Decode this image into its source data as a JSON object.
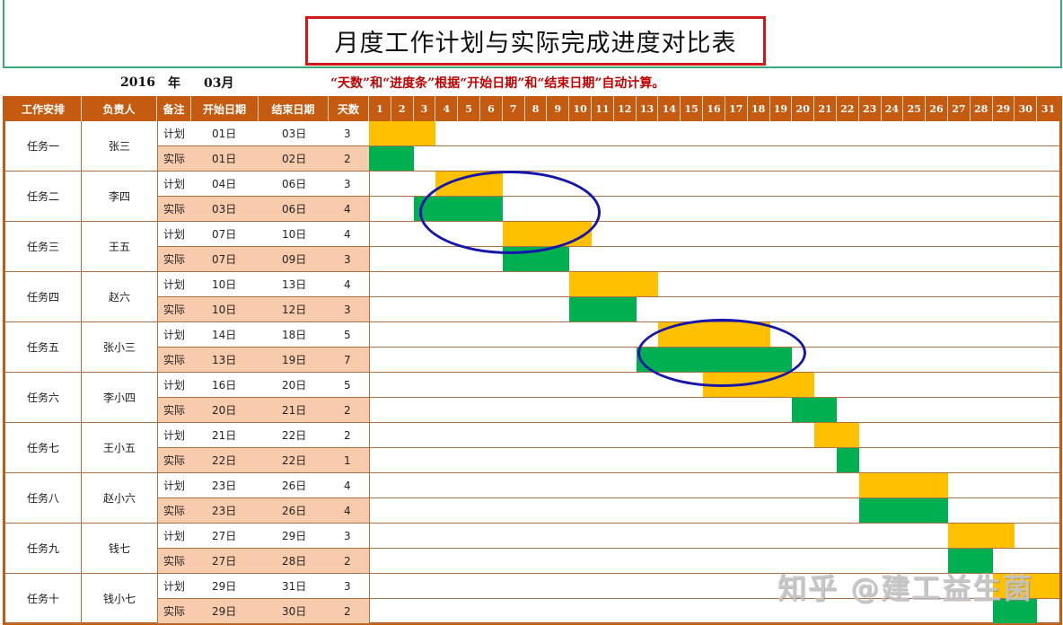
{
  "title": "月度工作计划与实际完成进度对比表",
  "period": {
    "year": "2016",
    "year_unit": "年",
    "month": "03月"
  },
  "note": "“天数”和“进度条”根据“开始日期”和“结束日期”自动计算。",
  "headers": [
    "工作安排",
    "负责人",
    "备注",
    "开始日期",
    "结束日期",
    "天数"
  ],
  "days": [
    "1",
    "2",
    "3",
    "4",
    "5",
    "6",
    "7",
    "8",
    "9",
    "10",
    "11",
    "12",
    "13",
    "14",
    "15",
    "16",
    "17",
    "18",
    "19",
    "20",
    "21",
    "22",
    "23",
    "24",
    "25",
    "26",
    "27",
    "28",
    "29",
    "30",
    "31"
  ],
  "colors": {
    "header": "#C55A11",
    "actual_row": "#F8CBAD",
    "plan_bar": "#FFC000",
    "actual_bar": "#00B050",
    "annotation": "#1616A8",
    "note_text": "#C00000"
  },
  "tasks": [
    {
      "name": "任务一",
      "owner": "张三",
      "plan": {
        "label": "计划",
        "start": "01日",
        "end": "03日",
        "days": "3"
      },
      "actual": {
        "label": "实际",
        "start": "01日",
        "end": "02日",
        "days": "2"
      }
    },
    {
      "name": "任务二",
      "owner": "李四",
      "plan": {
        "label": "计划",
        "start": "04日",
        "end": "06日",
        "days": "3"
      },
      "actual": {
        "label": "实际",
        "start": "03日",
        "end": "06日",
        "days": "4"
      }
    },
    {
      "name": "任务三",
      "owner": "王五",
      "plan": {
        "label": "计划",
        "start": "07日",
        "end": "10日",
        "days": "4"
      },
      "actual": {
        "label": "实际",
        "start": "07日",
        "end": "09日",
        "days": "3"
      }
    },
    {
      "name": "任务四",
      "owner": "赵六",
      "plan": {
        "label": "计划",
        "start": "10日",
        "end": "13日",
        "days": "4"
      },
      "actual": {
        "label": "实际",
        "start": "10日",
        "end": "12日",
        "days": "3"
      }
    },
    {
      "name": "任务五",
      "owner": "张小三",
      "plan": {
        "label": "计划",
        "start": "14日",
        "end": "18日",
        "days": "5"
      },
      "actual": {
        "label": "实际",
        "start": "13日",
        "end": "19日",
        "days": "7"
      }
    },
    {
      "name": "任务六",
      "owner": "李小四",
      "plan": {
        "label": "计划",
        "start": "16日",
        "end": "20日",
        "days": "5"
      },
      "actual": {
        "label": "实际",
        "start": "20日",
        "end": "21日",
        "days": "2"
      }
    },
    {
      "name": "任务七",
      "owner": "王小五",
      "plan": {
        "label": "计划",
        "start": "21日",
        "end": "22日",
        "days": "2"
      },
      "actual": {
        "label": "实际",
        "start": "22日",
        "end": "22日",
        "days": "1"
      }
    },
    {
      "name": "任务八",
      "owner": "赵小六",
      "plan": {
        "label": "计划",
        "start": "23日",
        "end": "26日",
        "days": "4"
      },
      "actual": {
        "label": "实际",
        "start": "23日",
        "end": "26日",
        "days": "4"
      }
    },
    {
      "name": "任务九",
      "owner": "钱七",
      "plan": {
        "label": "计划",
        "start": "27日",
        "end": "29日",
        "days": "3"
      },
      "actual": {
        "label": "实际",
        "start": "27日",
        "end": "28日",
        "days": "2"
      }
    },
    {
      "name": "任务十",
      "owner": "钱小七",
      "plan": {
        "label": "计划",
        "start": "29日",
        "end": "31日",
        "days": "3"
      },
      "actual": {
        "label": "实际",
        "start": "29日",
        "end": "30日",
        "days": "2"
      }
    }
  ],
  "chart_data": {
    "type": "bar",
    "subtype": "gantt",
    "title": "月度工作计划与实际完成进度对比表",
    "xlabel": "日 (2016年03月)",
    "ylabel": "工作安排",
    "x_range": [
      1,
      31
    ],
    "categories": [
      "任务一",
      "任务二",
      "任务三",
      "任务四",
      "任务五",
      "任务六",
      "任务七",
      "任务八",
      "任务九",
      "任务十"
    ],
    "series": [
      {
        "name": "计划",
        "color": "#FFC000",
        "start": [
          1,
          4,
          7,
          10,
          14,
          16,
          21,
          23,
          27,
          29
        ],
        "end": [
          3,
          6,
          10,
          13,
          18,
          20,
          22,
          26,
          29,
          31
        ],
        "days": [
          3,
          3,
          4,
          4,
          5,
          5,
          2,
          4,
          3,
          3
        ]
      },
      {
        "name": "实际",
        "color": "#00B050",
        "start": [
          1,
          3,
          7,
          10,
          13,
          20,
          22,
          23,
          27,
          29
        ],
        "end": [
          2,
          6,
          9,
          12,
          19,
          21,
          22,
          26,
          28,
          30
        ],
        "days": [
          2,
          4,
          3,
          3,
          7,
          2,
          1,
          4,
          2,
          2
        ]
      }
    ],
    "annotations": [
      {
        "type": "ellipse",
        "target": "任务二 / 任务三",
        "color": "#1616A8"
      },
      {
        "type": "ellipse",
        "target": "任务五",
        "color": "#1616A8"
      }
    ],
    "grid": "horizontal-only",
    "legend": "none"
  },
  "watermark": "知乎 @建工益生菌"
}
